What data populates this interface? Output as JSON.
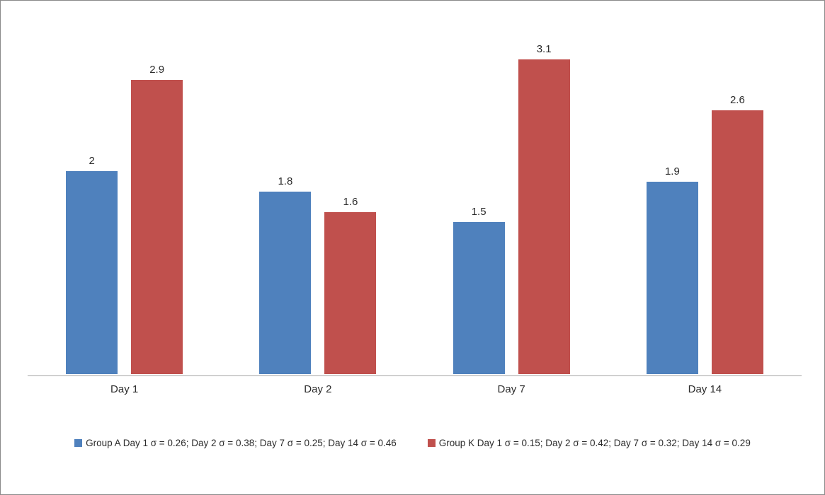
{
  "window": {
    "background": "#ffffff",
    "border_color": "#8a8a8a"
  },
  "chart_data": {
    "type": "bar",
    "title": "",
    "xlabel": "",
    "ylabel": "",
    "categories": [
      "Day 1",
      "Day 2",
      "Day 7",
      "Day 14"
    ],
    "series": [
      {
        "key": "group-a",
        "name": "Group A Day 1 σ = 0.26; Day 2 σ = 0.38; Day 7 σ = 0.25; Day 14 σ = 0.46",
        "color": "#4F81BD",
        "values": [
          2,
          1.8,
          1.5,
          1.9
        ]
      },
      {
        "key": "group-k",
        "name": "Group K Day 1 σ = 0.15; Day 2 σ = 0.42; Day 7 σ = 0.32; Day 14 σ = 0.29",
        "color": "#C0504D",
        "values": [
          2.9,
          1.6,
          3.1,
          2.6
        ]
      }
    ],
    "data_labels": true,
    "ylim": [
      0,
      3.5
    ],
    "grid": false,
    "y_axis_visible": false,
    "legend_position": "bottom",
    "axis_line_color": "#a3a3a3",
    "text_color": "#2b2b2b"
  }
}
